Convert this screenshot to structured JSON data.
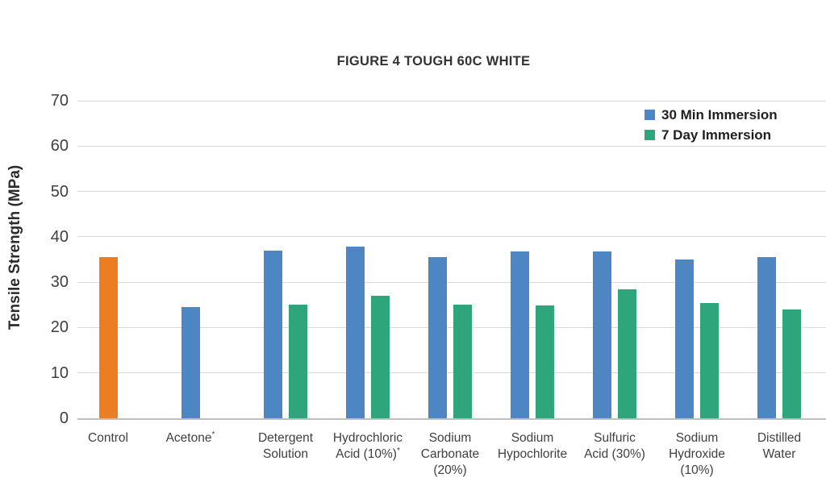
{
  "title": "FIGURE 4 TOUGH 60C WHITE",
  "legend": {
    "position": "top-right",
    "items": [
      {
        "label": "30 Min Immersion",
        "color": "#4E86C4"
      },
      {
        "label": "7 Day Immersion",
        "color": "#2EA57A"
      }
    ]
  },
  "chart_data": {
    "type": "bar",
    "title": "FIGURE 4 TOUGH 60C WHITE",
    "xlabel": "",
    "ylabel": "Tensile Strength (MPa)",
    "ylim": [
      0,
      70
    ],
    "yticks": [
      0,
      10,
      20,
      30,
      40,
      50,
      60,
      70
    ],
    "grid": true,
    "legend_position": "top-right",
    "categories": [
      "Control",
      "Acetone*",
      "Detergent Solution",
      "Hydrochloric Acid (10%)*",
      "Sodium Carbonate (20%)",
      "Sodium Hypochlorite",
      "Sulfuric Acid (30%)",
      "Sodium Hydroxide (10%)",
      "Distilled Water"
    ],
    "category_label_lines": [
      [
        "Control"
      ],
      [
        "Acetone*"
      ],
      [
        "Detergent",
        "Solution"
      ],
      [
        "Hydrochloric",
        "Acid (10%)*"
      ],
      [
        "Sodium",
        "Carbonate",
        "(20%)"
      ],
      [
        "Sodium",
        "Hypochlorite"
      ],
      [
        "Sulfuric",
        "Acid (30%)"
      ],
      [
        "Sodium",
        "Hydroxide",
        "(10%)"
      ],
      [
        "Distilled",
        "Water"
      ]
    ],
    "series": [
      {
        "name": "Control",
        "color": "#ED7D23",
        "in_legend": false,
        "values": [
          35.5,
          null,
          null,
          null,
          null,
          null,
          null,
          null,
          null
        ]
      },
      {
        "name": "30 Min Immersion",
        "color": "#4E86C4",
        "in_legend": true,
        "values": [
          null,
          24.5,
          37,
          37.8,
          35.5,
          36.8,
          36.8,
          35,
          35.5
        ]
      },
      {
        "name": "7 Day Immersion",
        "color": "#2EA57A",
        "in_legend": true,
        "values": [
          null,
          null,
          25,
          27,
          25,
          24.8,
          28.5,
          25.5,
          24
        ]
      }
    ],
    "colors": {
      "gridline": "#D9D9D9",
      "axis_line": "#BFBFBF",
      "text": "#3F3F3F"
    }
  }
}
